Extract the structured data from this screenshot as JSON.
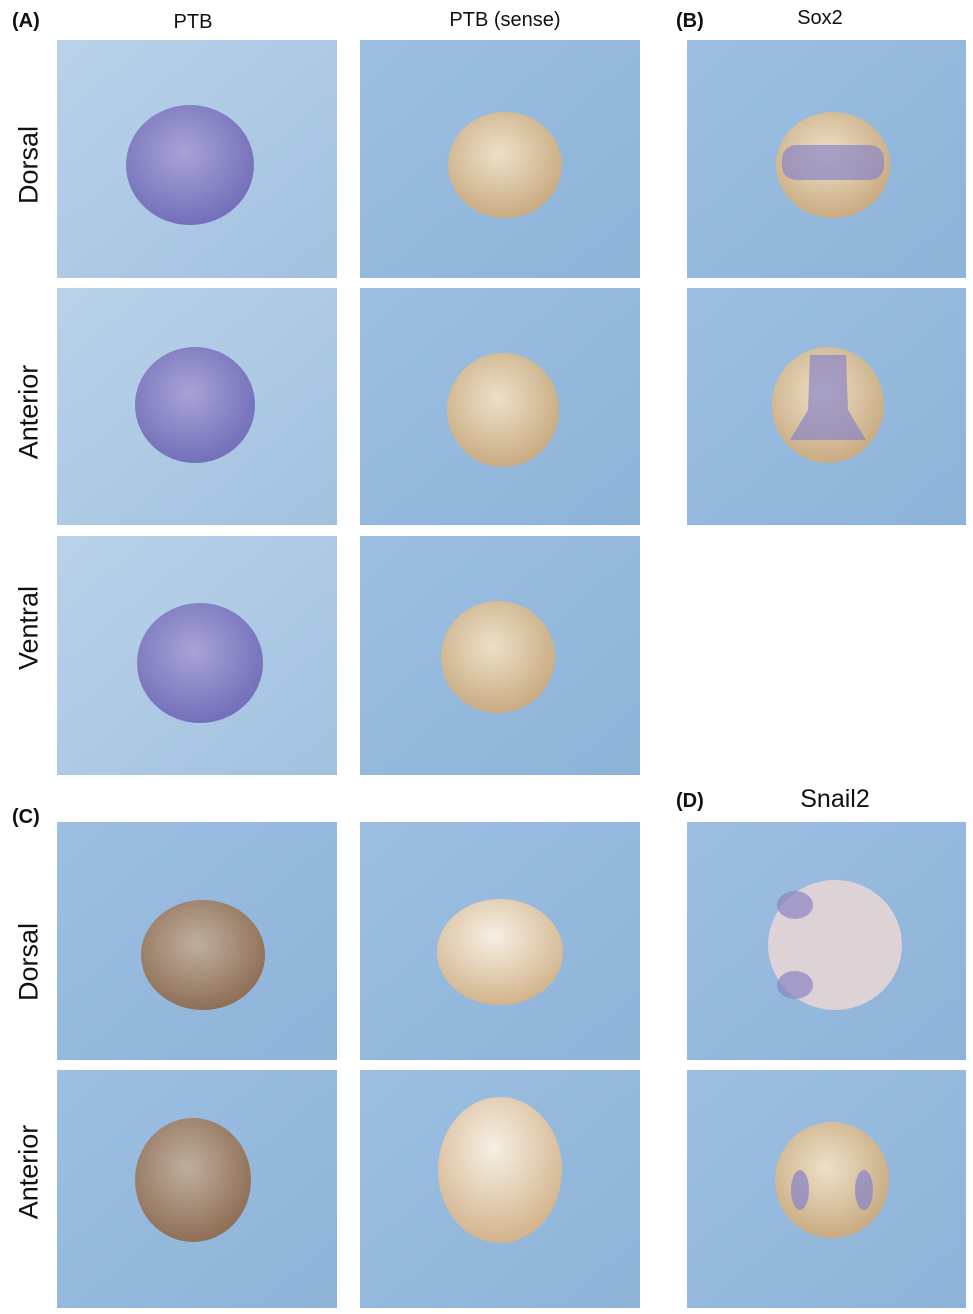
{
  "panels": {
    "A": {
      "letter": "(A)",
      "columns": [
        "PTB",
        "PTB (sense)"
      ],
      "rows": [
        "Dorsal",
        "Anterior",
        "Ventral"
      ]
    },
    "B": {
      "letter": "(B)",
      "title": "Sox2"
    },
    "C": {
      "letter": "(C)",
      "rows": [
        "Dorsal",
        "Anterior"
      ]
    },
    "D": {
      "letter": "(D)",
      "title": "Snail2"
    }
  },
  "colors": {
    "background_blue": "#a4c4e2",
    "stain_purple": "#8782c6",
    "embryo_beige": "#dcc8a8",
    "stain_brown": "#9a7a62"
  }
}
